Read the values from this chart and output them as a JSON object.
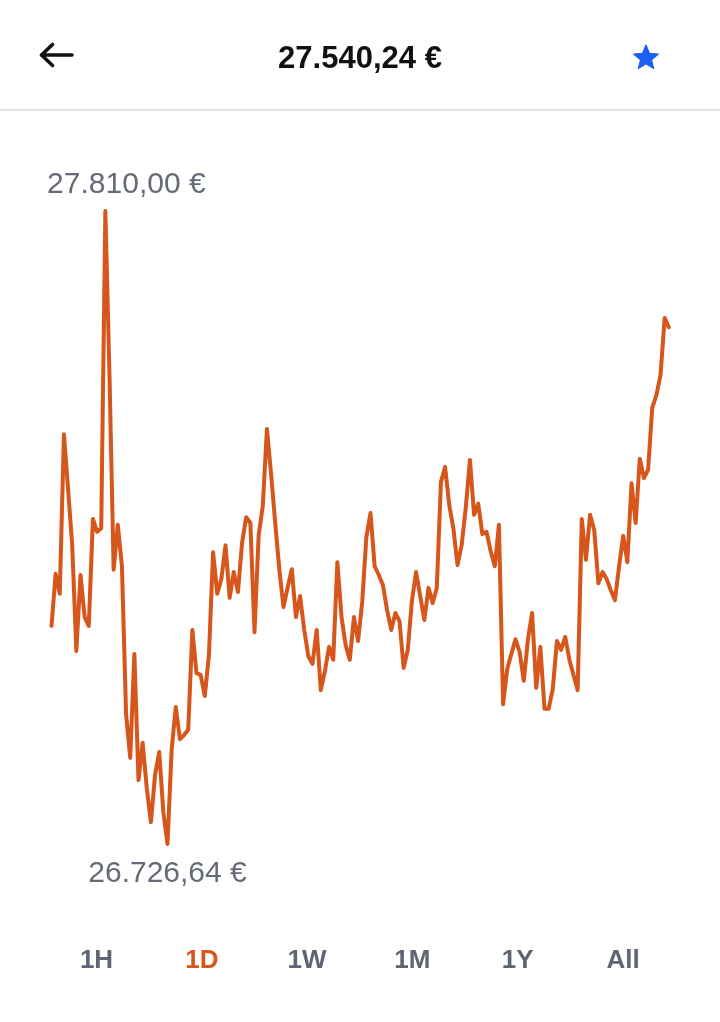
{
  "chart_data": {
    "type": "line",
    "title": "27.540,24 €",
    "tick_labels": false,
    "annotations": [
      "1H",
      "1D",
      "1W",
      "1M",
      "1Y",
      "All"
    ],
    "categories": [
      null,
      null,
      null,
      null,
      null,
      null,
      null,
      null,
      null,
      null,
      null,
      null,
      null,
      null,
      null,
      null,
      null,
      null,
      null,
      null,
      null,
      null,
      null,
      null,
      null,
      null,
      null,
      null,
      null,
      null,
      null,
      null,
      null,
      null,
      null,
      null,
      null,
      null,
      null,
      null,
      null,
      null,
      null,
      null,
      null,
      null,
      null,
      null,
      null,
      null,
      null,
      null,
      null,
      null,
      null,
      null,
      null,
      null,
      null,
      null,
      null,
      null,
      null,
      null,
      null,
      null,
      null,
      null,
      null,
      null,
      null,
      null,
      null,
      null,
      null,
      null,
      null,
      null,
      null,
      null,
      null,
      null,
      null,
      null,
      null,
      null,
      null,
      null,
      null,
      null,
      null,
      null,
      null,
      null,
      null,
      null,
      null,
      null,
      null,
      null,
      null,
      null,
      null,
      null,
      null,
      null,
      null,
      null,
      null,
      null,
      null,
      null,
      null,
      null,
      null,
      null,
      null,
      null,
      null,
      null,
      null,
      null,
      null,
      null,
      null,
      null,
      null,
      null,
      null,
      null,
      null,
      null,
      null,
      null,
      null,
      null,
      null,
      null,
      null,
      null,
      null,
      null,
      null,
      null,
      null,
      null,
      null,
      null,
      null,
      null
    ],
    "series": [
      {
        "color": "#d6561c",
        "values": [
          27100,
          27189,
          27155,
          27428,
          27334,
          27238,
          27057,
          27187,
          27115,
          27100,
          27283,
          27261,
          27267,
          27810,
          27528,
          27196,
          27273,
          27202,
          26949,
          26874,
          27052,
          26836,
          26900,
          26822,
          26764,
          26845,
          26884,
          26781,
          26726.64,
          26888,
          26961,
          26906,
          26913,
          26922,
          27093,
          27019,
          27016,
          26980,
          27050,
          27226,
          27155,
          27180,
          27238,
          27148,
          27192,
          27158,
          27242,
          27286,
          27276,
          27089,
          27255,
          27305,
          27437,
          27360,
          27276,
          27196,
          27132,
          27166,
          27197,
          27115,
          27151,
          27093,
          27048,
          27035,
          27093,
          26990,
          27023,
          27064,
          27042,
          27209,
          27115,
          27067,
          27042,
          27115,
          27074,
          27141,
          27252,
          27293,
          27202,
          27187,
          27170,
          27127,
          27093,
          27122,
          27108,
          27028,
          27059,
          27143,
          27192,
          27151,
          27110,
          27165,
          27139,
          27165,
          27346,
          27372,
          27307,
          27267,
          27204,
          27238,
          27303,
          27384,
          27290,
          27309,
          27257,
          27261,
          27228,
          27202,
          27273,
          26966,
          27026,
          27052,
          27077,
          27055,
          27006,
          27077,
          27122,
          26994,
          27064,
          26958,
          26958,
          26992,
          27074,
          27059,
          27081,
          27042,
          27016,
          26990,
          27283,
          27213,
          27290,
          27264,
          27173,
          27192,
          27180,
          27161,
          27144,
          27202,
          27254,
          27209,
          27344,
          27276,
          27386,
          27353,
          27367,
          27473,
          27495,
          27529,
          27627,
          27611
        ],
        "value_labels": [
          null,
          null,
          null,
          null,
          null,
          null,
          null,
          null,
          null,
          null,
          null,
          null,
          null,
          "27.810,00 €",
          null,
          null,
          null,
          null,
          null,
          null,
          null,
          null,
          null,
          null,
          null,
          null,
          null,
          null,
          "26.726,64 €",
          null,
          null,
          null,
          null,
          null,
          null,
          null,
          null,
          null,
          null,
          null,
          null,
          null,
          null,
          null,
          null,
          null,
          null,
          null,
          null,
          null,
          null,
          null,
          null,
          null,
          null,
          null,
          null,
          null,
          null,
          null,
          null,
          null,
          null,
          null,
          null,
          null,
          null,
          null,
          null,
          null,
          null,
          null,
          null,
          null,
          null,
          null,
          null,
          null,
          null,
          null,
          null,
          null,
          null,
          null,
          null,
          null,
          null,
          null,
          null,
          null,
          null,
          null,
          null,
          null,
          null,
          null,
          null,
          null,
          null,
          null,
          null,
          null,
          null,
          null,
          null,
          null,
          null,
          null,
          null,
          null,
          null,
          null,
          null,
          null,
          null,
          null,
          null,
          null,
          null,
          null,
          null,
          null,
          null,
          null,
          null,
          null,
          null,
          null,
          null,
          null,
          null,
          null,
          null,
          null,
          null,
          null,
          null,
          null,
          null,
          null,
          null,
          null,
          null,
          null,
          null,
          null,
          null,
          null,
          null,
          null
        ]
      }
    ]
  }
}
